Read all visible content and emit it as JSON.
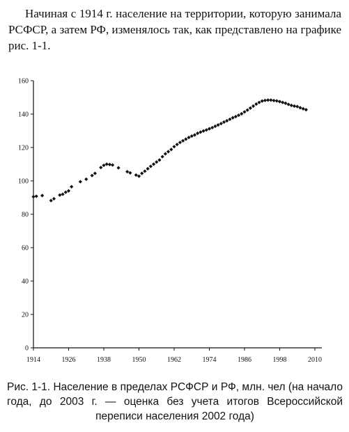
{
  "intro_text": "Начиная с 1914 г. население на территории, которую занимала РСФСР, а затем РФ, изменялось так, как представлено на графике рис. 1-1.",
  "caption": "Рис. 1-1. Население в пределах РСФСР и РФ, млн. чел (на начало года, до 2003 г. — оценка без учета итогов Всероссийской переписи населения 2002 года)",
  "chart_data": {
    "type": "scatter",
    "title": "",
    "xlabel": "",
    "ylabel": "",
    "xlim": [
      1914,
      2010
    ],
    "ylim": [
      0,
      160
    ],
    "grid": false,
    "x_ticks": [
      1914,
      1926,
      1938,
      1950,
      1962,
      1974,
      1986,
      1998,
      2010
    ],
    "y_ticks": [
      0,
      20,
      40,
      60,
      80,
      100,
      120,
      140,
      160
    ],
    "series": [
      {
        "x": [
          1914,
          1915,
          1917,
          1920,
          1921,
          1923,
          1924,
          1925,
          1926,
          1927,
          1930,
          1932,
          1934,
          1935,
          1937,
          1938,
          1939,
          1940,
          1941,
          1943,
          1946,
          1947,
          1949,
          1950,
          1951,
          1952,
          1953,
          1954,
          1955,
          1956,
          1957,
          1958,
          1959,
          1960,
          1961,
          1962,
          1963,
          1964,
          1965,
          1966,
          1967,
          1968,
          1969,
          1970,
          1971,
          1972,
          1973,
          1974,
          1975,
          1976,
          1977,
          1978,
          1979,
          1980,
          1981,
          1982,
          1983,
          1984,
          1985,
          1986,
          1987,
          1988,
          1989,
          1990,
          1991,
          1992,
          1993,
          1994,
          1995,
          1996,
          1997,
          1998,
          1999,
          2000,
          2001,
          2002,
          2003,
          2004,
          2005,
          2006,
          2007
        ],
        "y": [
          90.5,
          90.8,
          91.2,
          88.2,
          89.3,
          91.5,
          92.0,
          93.2,
          94.0,
          96.5,
          99.5,
          101.0,
          103.2,
          104.5,
          108.0,
          109.3,
          110.0,
          109.8,
          109.5,
          107.8,
          105.5,
          104.8,
          103.5,
          102.8,
          104.5,
          105.8,
          107.3,
          108.7,
          110.0,
          111.3,
          112.5,
          114.5,
          116.2,
          117.5,
          118.8,
          120.5,
          121.8,
          123.0,
          124.0,
          125.0,
          126.0,
          126.8,
          127.5,
          128.5,
          129.2,
          129.9,
          130.5,
          131.2,
          131.9,
          132.7,
          133.5,
          134.3,
          135.2,
          136.0,
          136.9,
          137.8,
          138.5,
          139.3,
          140.2,
          141.3,
          142.4,
          143.6,
          144.8,
          146.0,
          147.0,
          147.8,
          148.2,
          148.4,
          148.4,
          148.1,
          147.9,
          147.5,
          147.0,
          146.5,
          145.8,
          145.2,
          144.8,
          144.5,
          143.8,
          143.2,
          142.6
        ]
      }
    ]
  }
}
